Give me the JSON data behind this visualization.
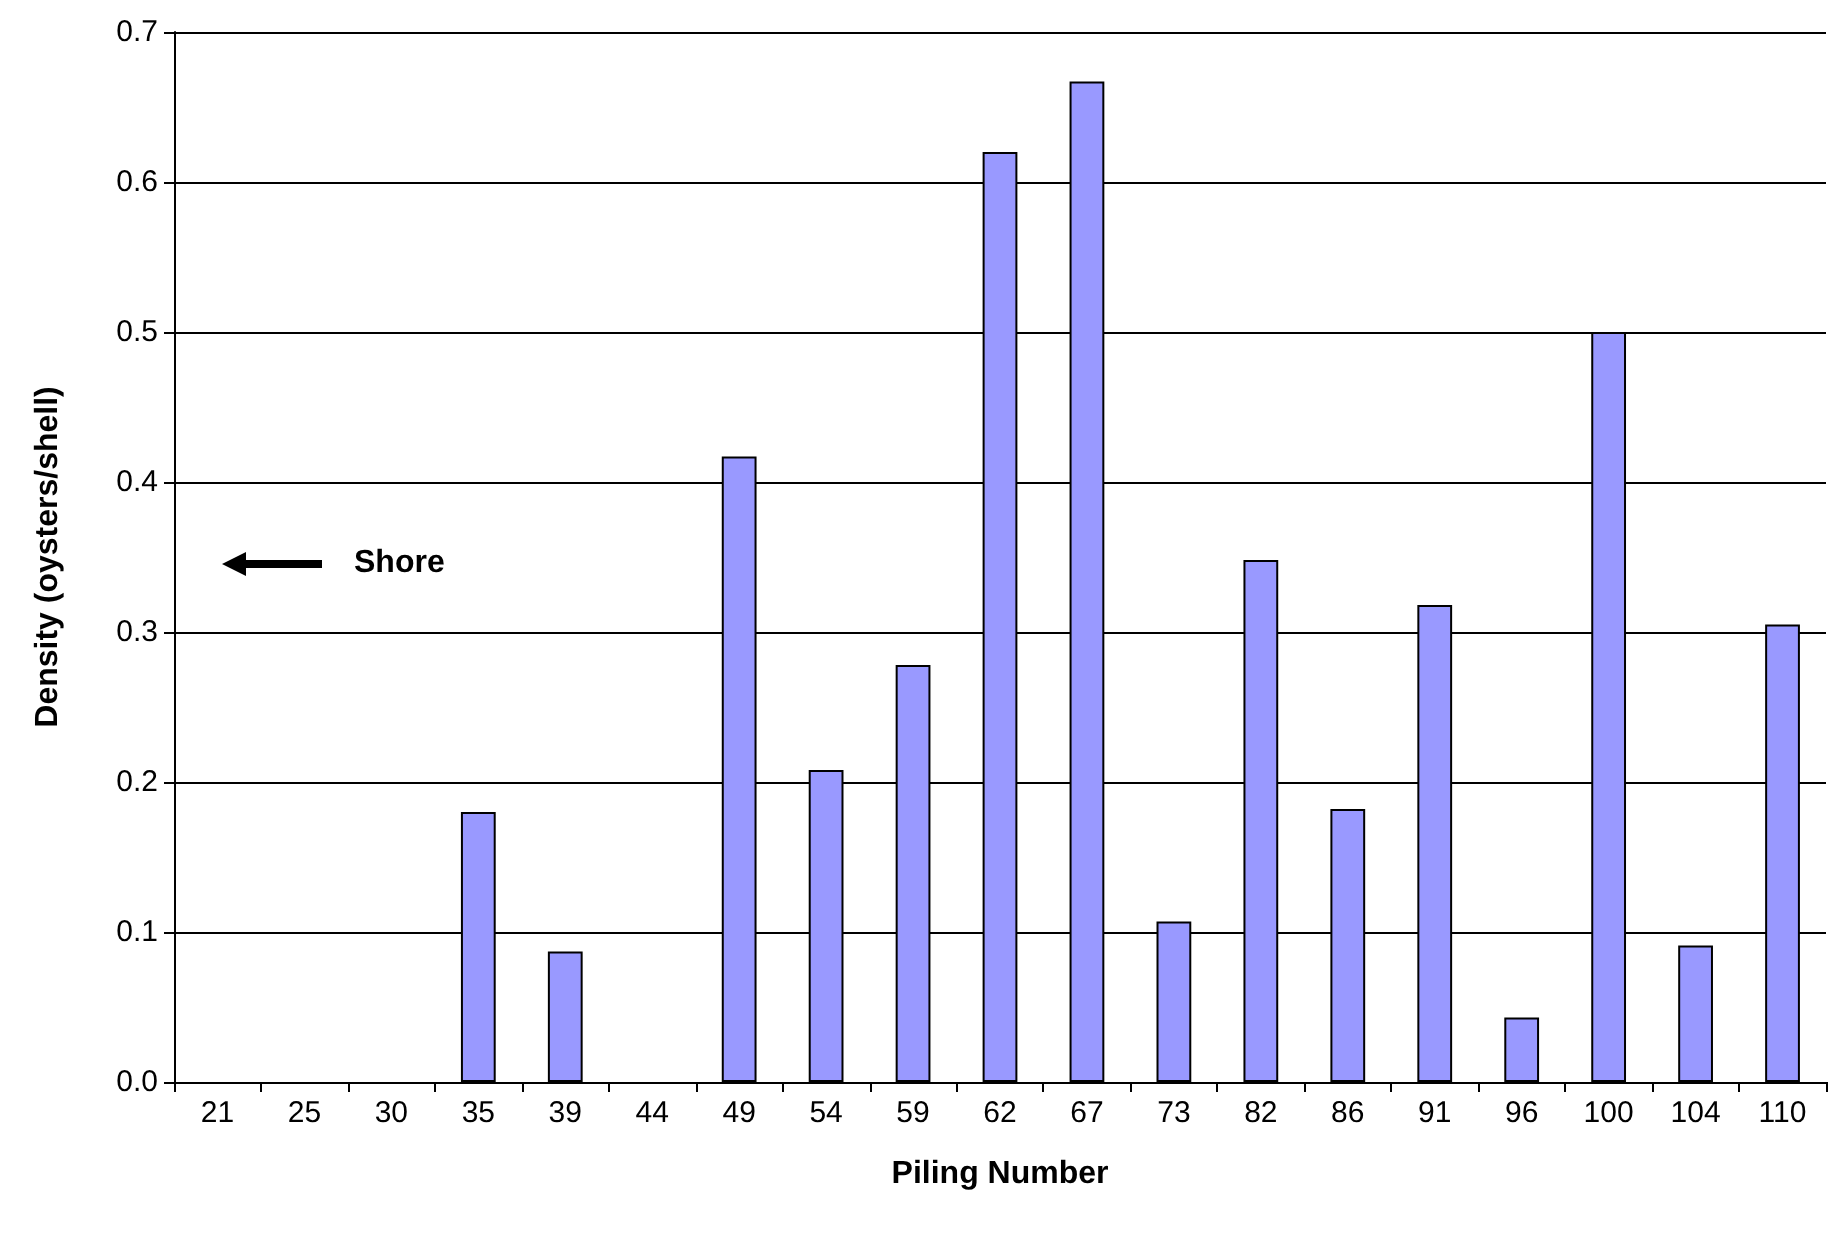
{
  "chart_data": {
    "type": "bar",
    "xlabel": "Piling Number",
    "ylabel": "Density (oysters/shell)",
    "categories": [
      "21",
      "25",
      "30",
      "35",
      "39",
      "44",
      "49",
      "54",
      "59",
      "62",
      "67",
      "73",
      "82",
      "86",
      "91",
      "96",
      "100",
      "104",
      "110"
    ],
    "values": [
      0,
      0,
      0,
      0.18,
      0.087,
      0,
      0.417,
      0.208,
      0.278,
      0.62,
      0.667,
      0.107,
      0.348,
      0.182,
      0.318,
      0.043,
      0.5,
      0.091,
      0.305
    ],
    "color": "#9999ff",
    "ylim": [
      0,
      0.7
    ],
    "yticks": [
      {
        "value": 0,
        "label": "0.0"
      },
      {
        "value": 0.1,
        "label": "0.1"
      },
      {
        "value": 0.2,
        "label": "0.2"
      },
      {
        "value": 0.3,
        "label": "0.3"
      },
      {
        "value": 0.4,
        "label": "0.4"
      },
      {
        "value": 0.5,
        "label": "0.5"
      },
      {
        "value": 0.6,
        "label": "0.6"
      },
      {
        "value": 0.7,
        "label": "0.7"
      }
    ],
    "grid": "y",
    "annotations": [
      "Shore"
    ]
  }
}
